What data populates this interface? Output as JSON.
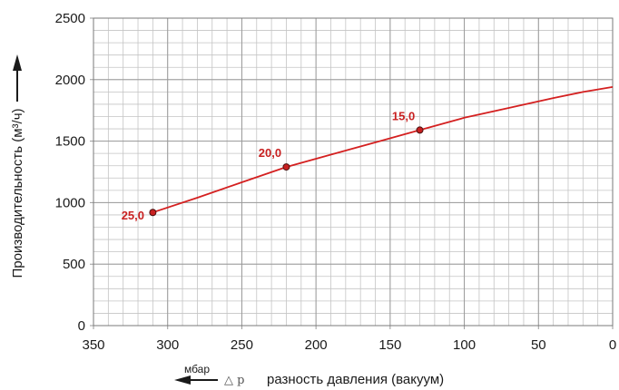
{
  "chart_data": {
    "type": "line",
    "ylabel": "Производительность (м³/ч)",
    "xlabel": "разность давления (вакуум)",
    "x_unit": "мбар",
    "x_symbol": "△ p",
    "xlim": [
      350,
      0
    ],
    "ylim": [
      0,
      2500
    ],
    "x_ticks": [
      350,
      300,
      250,
      200,
      150,
      100,
      50,
      0
    ],
    "y_ticks": [
      0,
      500,
      1000,
      1500,
      2000,
      2500
    ],
    "x_tick_labels": [
      "350",
      "300",
      "250",
      "200",
      "150",
      "100",
      "50",
      "0"
    ],
    "y_tick_labels": [
      "0",
      "500",
      "1000",
      "1500",
      "2000",
      "2500"
    ],
    "x_reversed": true,
    "grid": true,
    "series": [
      {
        "x": [
          310,
          280,
          250,
          220,
          190,
          160,
          130,
          100,
          70,
          40,
          20,
          0
        ],
        "y": [
          920,
          1040,
          1165,
          1290,
          1390,
          1490,
          1590,
          1690,
          1770,
          1850,
          1900,
          1940
        ],
        "color": "#d42020"
      }
    ],
    "annotated_points": [
      {
        "x": 310,
        "y": 920,
        "label": "25,0"
      },
      {
        "x": 220,
        "y": 1290,
        "label": "20,0"
      },
      {
        "x": 130,
        "y": 1590,
        "label": "15,0"
      }
    ]
  }
}
